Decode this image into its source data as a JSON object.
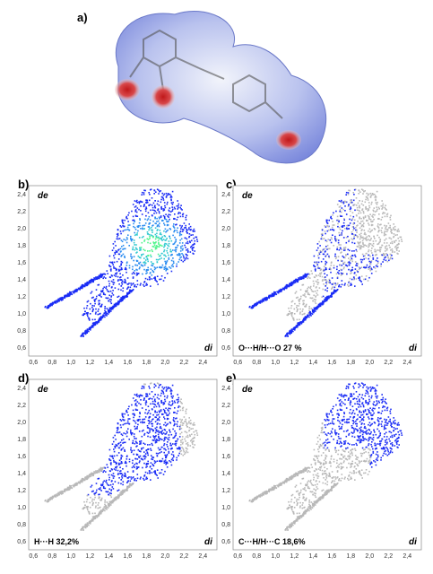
{
  "labels": {
    "a": "a)",
    "b": "b)",
    "c": "c)",
    "d": "d)",
    "e": "e)"
  },
  "axes": {
    "y": "de",
    "x": "di"
  },
  "ticks": {
    "x": [
      "0,6",
      "0,8",
      "1,0",
      "1,2",
      "1,4",
      "1,6",
      "1,8",
      "2,0",
      "2,2",
      "2,4"
    ],
    "y": [
      "0,6",
      "0,8",
      "1,0",
      "1,2",
      "1,4",
      "1,6",
      "1,8",
      "2,0",
      "2,2",
      "2,4"
    ]
  },
  "colors": {
    "contact": "#1a2cf5",
    "dense": "#2ee89a",
    "background": "#b8b8b8",
    "surface": "#7f8ee8",
    "red_spot": "#c0181a"
  },
  "panels": [
    {
      "key": "b",
      "caption": "",
      "highlight": "all"
    },
    {
      "key": "c",
      "caption": "O···H/H···O 27 %",
      "highlight": "OH"
    },
    {
      "key": "d",
      "caption": "H···H 32,2%",
      "highlight": "HH"
    },
    {
      "key": "e",
      "caption": "C···H/H···C 18,6%",
      "highlight": "CH"
    }
  ],
  "chart_data": [
    {
      "type": "scatter",
      "panel": "b",
      "x_label": "di",
      "y_label": "de",
      "xlim": [
        0.6,
        2.4
      ],
      "ylim": [
        0.6,
        2.4
      ],
      "caption": ""
    },
    {
      "type": "scatter",
      "panel": "c",
      "x_label": "di",
      "y_label": "de",
      "xlim": [
        0.6,
        2.4
      ],
      "ylim": [
        0.6,
        2.4
      ],
      "caption": "O···H/H···O 27 %"
    },
    {
      "type": "scatter",
      "panel": "d",
      "x_label": "di",
      "y_label": "de",
      "xlim": [
        0.6,
        2.4
      ],
      "ylim": [
        0.6,
        2.4
      ],
      "caption": "H···H 32,2%"
    },
    {
      "type": "scatter",
      "panel": "e",
      "x_label": "di",
      "y_label": "de",
      "xlim": [
        0.6,
        2.4
      ],
      "ylim": [
        0.6,
        2.4
      ],
      "caption": "C···H/H···C 18,6%"
    }
  ]
}
